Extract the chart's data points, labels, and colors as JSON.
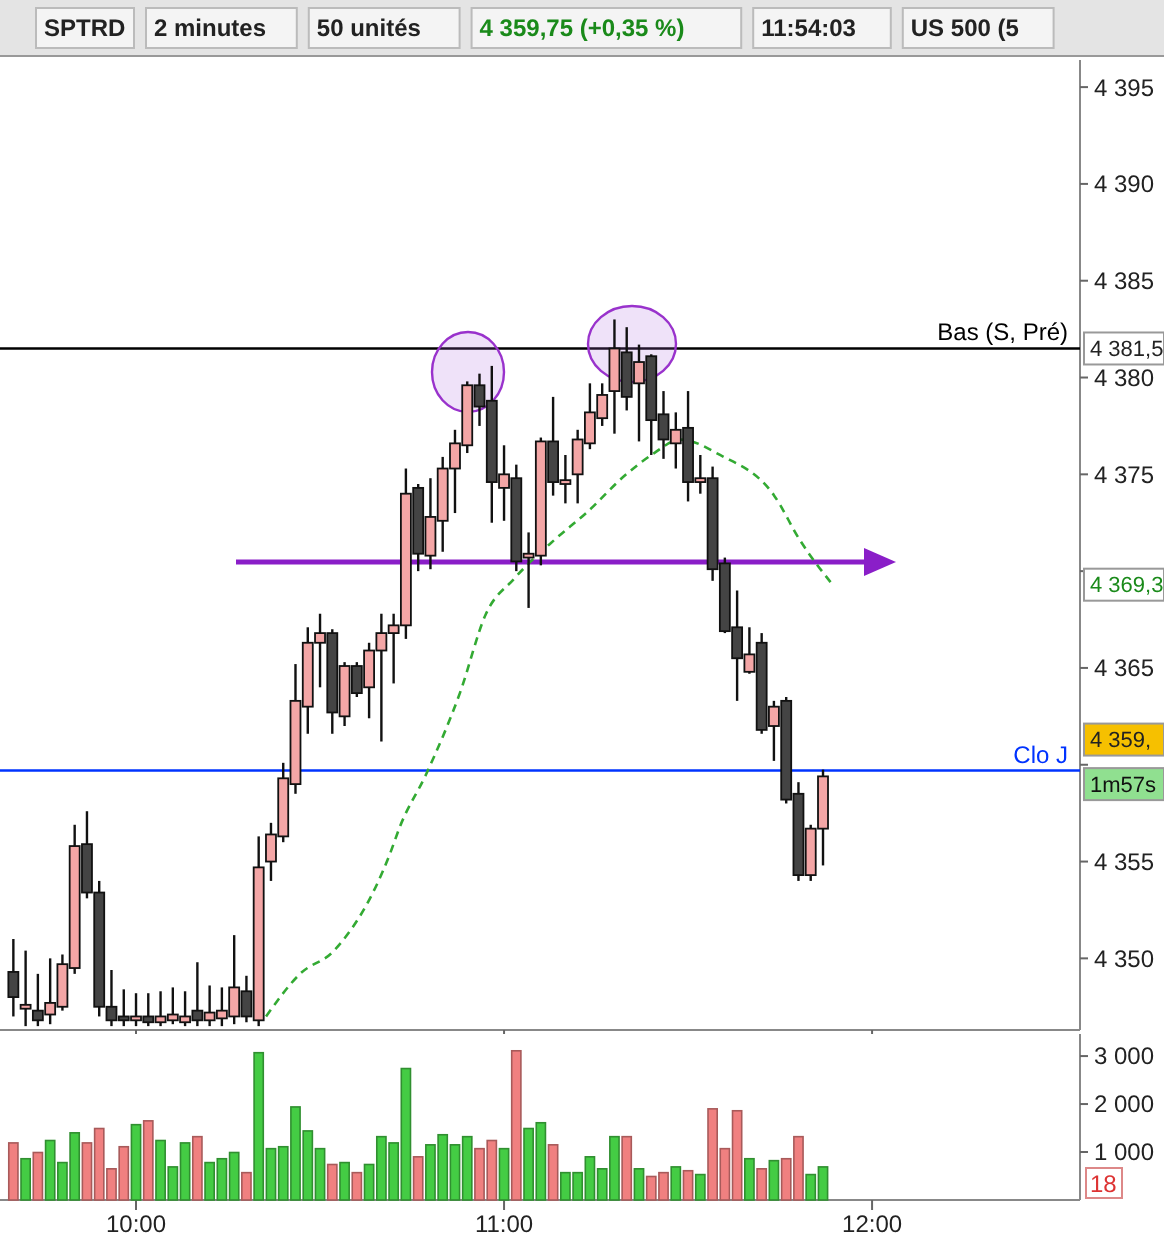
{
  "chart_data": [
    {
      "type": "candlestick",
      "title": "SPTRD",
      "annotations": [
        "2 minutes",
        "50 unités",
        "4 359,75 (+0,35 %)",
        "11:54:03",
        "US 500 (5",
        {
          "text": "4 381,5",
          "y": 4381.5
        },
        {
          "text": "4 369,3",
          "y": 4369.3
        },
        {
          "text": "4 359,",
          "y": 4361.3
        },
        {
          "text": "1m57s",
          "y": 4359.0
        }
      ],
      "x": [
        9.6667,
        9.7,
        9.7333,
        9.7667,
        9.8,
        9.8333,
        9.8667,
        9.9,
        9.9333,
        9.9667,
        10,
        10.0333,
        10.0667,
        10.1,
        10.1333,
        10.1667,
        10.2,
        10.2333,
        10.2667,
        10.3,
        10.3333,
        10.3667,
        10.4,
        10.4333,
        10.4667,
        10.5,
        10.5333,
        10.5667,
        10.6,
        10.6333,
        10.6667,
        10.7,
        10.7333,
        10.7667,
        10.8,
        10.8333,
        10.8667,
        10.9,
        10.9333,
        10.9667,
        11,
        11.0333,
        11.0667,
        11.1,
        11.1333,
        11.1667,
        11.2,
        11.2333,
        11.2667,
        11.3,
        11.3333,
        11.3667,
        11.4,
        11.4333,
        11.4667,
        11.5,
        11.5333,
        11.5667,
        11.6,
        11.6333,
        11.6667,
        11.7,
        11.7333,
        11.7667,
        11.8,
        11.8333,
        11.8667
      ],
      "ohlc": [
        [
          4349.3,
          4351.0,
          4347.0,
          4348.0
        ],
        [
          4347.4,
          4350.4,
          4346.5,
          4347.6
        ],
        [
          4347.3,
          4349.2,
          4346.5,
          4346.8
        ],
        [
          4347.1,
          4350.0,
          4346.6,
          4347.7
        ],
        [
          4347.5,
          4350.2,
          4347.3,
          4349.7
        ],
        [
          4349.5,
          4356.9,
          4349.2,
          4355.8
        ],
        [
          4355.9,
          4357.6,
          4353.1,
          4353.4
        ],
        [
          4353.4,
          4354.0,
          4347.0,
          4347.5
        ],
        [
          4347.5,
          4349.4,
          4346.5,
          4346.8
        ],
        [
          4347.0,
          4348.4,
          4346.5,
          4346.8
        ],
        [
          4346.8,
          4348.2,
          4346.5,
          4347.0
        ],
        [
          4347.0,
          4348.2,
          4346.5,
          4346.7
        ],
        [
          4346.7,
          4348.3,
          4346.5,
          4347.0
        ],
        [
          4346.8,
          4348.5,
          4346.6,
          4347.1
        ],
        [
          4346.7,
          4348.3,
          4346.5,
          4347.0
        ],
        [
          4347.3,
          4349.8,
          4346.5,
          4346.8
        ],
        [
          4346.8,
          4348.6,
          4346.5,
          4347.2
        ],
        [
          4346.9,
          4348.5,
          4346.5,
          4347.3
        ],
        [
          4347.0,
          4351.2,
          4346.6,
          4348.5
        ],
        [
          4348.3,
          4349.1,
          4346.7,
          4347.0
        ],
        [
          4346.8,
          4356.3,
          4346.5,
          4354.7
        ],
        [
          4355.0,
          4357.0,
          4354.0,
          4356.4
        ],
        [
          4356.3,
          4360.1,
          4356.0,
          4359.3
        ],
        [
          4359.0,
          4365.2,
          4358.5,
          4363.3
        ],
        [
          4363.0,
          4367.1,
          4361.6,
          4366.3
        ],
        [
          4366.3,
          4367.8,
          4364.0,
          4366.8
        ],
        [
          4366.8,
          4367.0,
          4361.6,
          4362.7
        ],
        [
          4362.5,
          4365.3,
          4362.0,
          4365.1
        ],
        [
          4365.1,
          4365.3,
          4363.5,
          4363.7
        ],
        [
          4364.0,
          4366.3,
          4362.4,
          4365.9
        ],
        [
          4365.9,
          4367.8,
          4361.2,
          4366.8
        ],
        [
          4366.8,
          4367.8,
          4364.2,
          4367.2
        ],
        [
          4367.2,
          4375.3,
          4366.5,
          4374.0
        ],
        [
          4374.3,
          4374.5,
          4370.0,
          4370.9
        ],
        [
          4370.8,
          4374.8,
          4370.1,
          4372.8
        ],
        [
          4372.6,
          4375.9,
          4371.0,
          4375.3
        ],
        [
          4375.3,
          4377.3,
          4373.0,
          4376.6
        ],
        [
          4376.5,
          4379.8,
          4376.1,
          4379.6
        ],
        [
          4379.6,
          4380.2,
          4377.5,
          4378.5
        ],
        [
          4378.8,
          4380.6,
          4372.5,
          4374.6
        ],
        [
          4374.3,
          4376.5,
          4372.6,
          4375.0
        ],
        [
          4374.8,
          4375.5,
          4370.0,
          4370.5
        ],
        [
          4370.7,
          4372.0,
          4368.1,
          4370.9
        ],
        [
          4370.8,
          4376.9,
          4370.3,
          4376.7
        ],
        [
          4376.7,
          4379.0,
          4373.9,
          4374.6
        ],
        [
          4374.5,
          4376.0,
          4373.5,
          4374.7
        ],
        [
          4375.0,
          4377.3,
          4373.5,
          4376.8
        ],
        [
          4376.6,
          4379.7,
          4376.3,
          4378.2
        ],
        [
          4377.9,
          4379.7,
          4377.5,
          4379.1
        ],
        [
          4379.3,
          4383.0,
          4377.1,
          4381.5
        ],
        [
          4381.3,
          4382.6,
          4378.3,
          4379.0
        ],
        [
          4379.7,
          4381.7,
          4376.7,
          4380.8
        ],
        [
          4381.1,
          4381.2,
          4376.0,
          4377.8
        ],
        [
          4378.1,
          4379.3,
          4375.8,
          4376.8
        ],
        [
          4376.6,
          4378.2,
          4375.3,
          4377.3
        ],
        [
          4377.4,
          4379.3,
          4373.6,
          4374.6
        ],
        [
          4374.6,
          4376.0,
          4374.0,
          4374.8
        ],
        [
          4374.8,
          4375.4,
          4369.5,
          4370.1
        ],
        [
          4370.4,
          4370.7,
          4366.8,
          4366.9
        ],
        [
          4367.1,
          4369.0,
          4363.3,
          4365.5
        ],
        [
          4364.8,
          4367.1,
          4364.7,
          4365.7
        ],
        [
          4366.3,
          4366.8,
          4361.6,
          4361.8
        ],
        [
          4362.0,
          4363.3,
          4360.2,
          4363.0
        ],
        [
          4363.3,
          4363.5,
          4358.0,
          4358.2
        ],
        [
          4358.5,
          4359.1,
          4354.0,
          4354.3
        ],
        [
          4354.3,
          4356.9,
          4354.0,
          4356.7
        ],
        [
          4356.7,
          4359.75,
          4354.8,
          4359.4
        ]
      ],
      "series": [
        {
          "type": "line",
          "color": "#33aa33",
          "line_style": "dashed",
          "x": [
            10.3533,
            10.4457,
            10.538,
            10.69,
            10.717,
            10.788,
            10.88,
            10.951,
            11.027,
            11.136,
            11.223,
            11.332,
            11.408,
            11.478,
            11.587,
            11.734,
            11.804,
            11.897
          ],
          "values": [
            4347.0,
            4349.2,
            4350.4,
            4355.4,
            4356.8,
            4359.5,
            4363.7,
            4367.8,
            4369.6,
            4371.6,
            4373.0,
            4375.0,
            4376.1,
            4376.8,
            4376.0,
            4373.9,
            4371.6,
            4369.2
          ]
        }
      ],
      "xlim": [
        9.6304,
        12.565
      ],
      "xticks": [
        {
          "value": 10,
          "label": null
        },
        {
          "value": 11,
          "label": null
        },
        {
          "value": 12,
          "label": null
        }
      ],
      "ylim": [
        4346.3,
        4396.4
      ],
      "yticks": [
        {
          "value": 4350,
          "label": "4 350"
        },
        {
          "value": 4355,
          "label": "4 355"
        },
        {
          "value": 4360,
          "label": null
        },
        {
          "value": 4365,
          "label": "4 365"
        },
        {
          "value": 4370,
          "label": null
        },
        {
          "value": 4375,
          "label": "4 375"
        },
        {
          "value": 4380,
          "label": "4 380"
        },
        {
          "value": 4385,
          "label": "4 385"
        },
        {
          "value": 4390,
          "label": "4 390"
        },
        {
          "value": 4395,
          "label": "4 395"
        }
      ],
      "tick_labels": "y",
      "ref_lines": [
        {
          "axis": "y",
          "value": 4381.5,
          "label": "Bas (S, Pré)",
          "color": "#000000"
        },
        {
          "axis": "y",
          "value": 4359.7,
          "label": "Clo J",
          "color": "#0033ff"
        }
      ]
    },
    {
      "type": "bar",
      "annotations": [
        "18"
      ],
      "x": [
        9.6667,
        9.7,
        9.7333,
        9.7667,
        9.8,
        9.8333,
        9.8667,
        9.9,
        9.9333,
        9.9667,
        10,
        10.0333,
        10.0667,
        10.1,
        10.1333,
        10.1667,
        10.2,
        10.2333,
        10.2667,
        10.3,
        10.3333,
        10.3667,
        10.4,
        10.4333,
        10.4667,
        10.5,
        10.5333,
        10.5667,
        10.6,
        10.6333,
        10.6667,
        10.7,
        10.7333,
        10.7667,
        10.8,
        10.8333,
        10.8667,
        10.9,
        10.9333,
        10.9667,
        11,
        11.0333,
        11.0667,
        11.1,
        11.1333,
        11.1667,
        11.2,
        11.2333,
        11.2667,
        11.3,
        11.3333,
        11.3667,
        11.4,
        11.4333,
        11.4667,
        11.5,
        11.5333,
        11.5667,
        11.6,
        11.6333,
        11.6667,
        11.7,
        11.7333,
        11.7667,
        11.8,
        11.8333,
        11.8667
      ],
      "values": [
        1190,
        860,
        990,
        1240,
        780,
        1400,
        1190,
        1490,
        650,
        1110,
        1570,
        1650,
        1240,
        690,
        1190,
        1320,
        780,
        860,
        990,
        570,
        3070,
        1070,
        1110,
        1940,
        1440,
        1070,
        740,
        780,
        570,
        740,
        1320,
        1190,
        2740,
        900,
        1150,
        1360,
        1150,
        1320,
        1070,
        1240,
        1070,
        3110,
        1490,
        1610,
        1150,
        570,
        570,
        900,
        650,
        1320,
        1320,
        650,
        490,
        570,
        690,
        610,
        530,
        1900,
        1070,
        1860,
        860,
        650,
        820,
        860,
        1320,
        530,
        690
      ],
      "colors": [
        "#f08080",
        "#44cc44",
        "#f08080",
        "#44cc44",
        "#44cc44",
        "#44cc44",
        "#f08080",
        "#f08080",
        "#f08080",
        "#f08080",
        "#44cc44",
        "#f08080",
        "#44cc44",
        "#44cc44",
        "#44cc44",
        "#f08080",
        "#44cc44",
        "#44cc44",
        "#44cc44",
        "#f08080",
        "#44cc44",
        "#44cc44",
        "#44cc44",
        "#44cc44",
        "#44cc44",
        "#44cc44",
        "#f08080",
        "#44cc44",
        "#f08080",
        "#44cc44",
        "#44cc44",
        "#44cc44",
        "#44cc44",
        "#f08080",
        "#44cc44",
        "#44cc44",
        "#44cc44",
        "#44cc44",
        "#f08080",
        "#f08080",
        "#44cc44",
        "#f08080",
        "#44cc44",
        "#44cc44",
        "#f08080",
        "#44cc44",
        "#44cc44",
        "#44cc44",
        "#44cc44",
        "#44cc44",
        "#f08080",
        "#44cc44",
        "#f08080",
        "#f08080",
        "#44cc44",
        "#f08080",
        "#44cc44",
        "#f08080",
        "#f08080",
        "#f08080",
        "#44cc44",
        "#f08080",
        "#44cc44",
        "#f08080",
        "#f08080",
        "#44cc44",
        "#44cc44"
      ],
      "xlim": [
        9.6304,
        12.565
      ],
      "xticks": [
        {
          "value": 10,
          "label": "10:00"
        },
        {
          "value": 11,
          "label": "11:00"
        },
        {
          "value": 12,
          "label": "12:00"
        }
      ],
      "ylim": [
        0,
        3460
      ],
      "yticks": [
        {
          "value": 1000,
          "label": "1 000"
        },
        {
          "value": 2000,
          "label": "2 000"
        },
        {
          "value": 3000,
          "label": "3 000"
        }
      ]
    }
  ]
}
